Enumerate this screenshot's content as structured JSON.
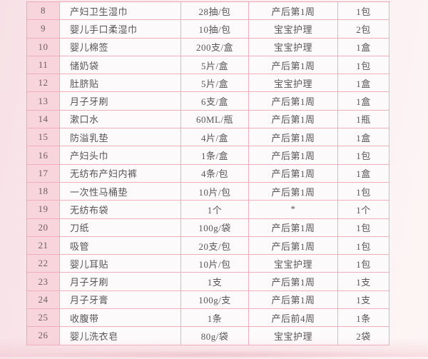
{
  "table": {
    "rows": [
      {
        "no": "8",
        "item": "产妇卫生湿巾",
        "spec": "28抽/包",
        "stage": "产后第1周",
        "qty": "1包"
      },
      {
        "no": "9",
        "item": "婴儿手口柔湿巾",
        "spec": "10抽/包",
        "stage": "宝宝护理",
        "qty": "2包"
      },
      {
        "no": "10",
        "item": "婴儿棉签",
        "spec": "200支/盒",
        "stage": "宝宝护理",
        "qty": "1盒"
      },
      {
        "no": "11",
        "item": "储奶袋",
        "spec": "5片/盒",
        "stage": "产后第1周",
        "qty": "1包"
      },
      {
        "no": "12",
        "item": "肚脐贴",
        "spec": "5片/盒",
        "stage": "宝宝护理",
        "qty": "1盒"
      },
      {
        "no": "13",
        "item": "月子牙刷",
        "spec": "6支/盒",
        "stage": "产后第1周",
        "qty": "1盒"
      },
      {
        "no": "14",
        "item": "漱口水",
        "spec": "60ML/瓶",
        "stage": "产后第1周",
        "qty": "1瓶"
      },
      {
        "no": "15",
        "item": "防溢乳垫",
        "spec": "4片/盒",
        "stage": "产后第1周",
        "qty": "1盒"
      },
      {
        "no": "16",
        "item": "产妇头巾",
        "spec": "1条/盒",
        "stage": "产后第1周",
        "qty": "1包"
      },
      {
        "no": "17",
        "item": "无纺布产妇内裤",
        "spec": "4条/包",
        "stage": "产后第1周",
        "qty": "1盒"
      },
      {
        "no": "18",
        "item": "一次性马桶垫",
        "spec": "10片/包",
        "stage": "产后第1周",
        "qty": "1包"
      },
      {
        "no": "19",
        "item": "无纺布袋",
        "spec": "1个",
        "stage": "*",
        "qty": "1个"
      },
      {
        "no": "20",
        "item": "刀纸",
        "spec": "100g/袋",
        "stage": "产后第1周",
        "qty": "1包"
      },
      {
        "no": "21",
        "item": "吸管",
        "spec": "20支/包",
        "stage": "产后第1周",
        "qty": "1包"
      },
      {
        "no": "22",
        "item": "婴儿耳贴",
        "spec": "10片/包",
        "stage": "宝宝护理",
        "qty": "1包"
      },
      {
        "no": "23",
        "item": "月子牙刷",
        "spec": "1支",
        "stage": "产后第1周",
        "qty": "1支"
      },
      {
        "no": "24",
        "item": "月子牙膏",
        "spec": "100g/支",
        "stage": "产后第1周",
        "qty": "1支"
      },
      {
        "no": "25",
        "item": "收腹带",
        "spec": "1条",
        "stage": "产后前4周",
        "qty": "1条"
      },
      {
        "no": "26",
        "item": "婴儿洗衣皂",
        "spec": "80g/袋",
        "stage": "宝宝护理",
        "qty": "2袋"
      }
    ]
  },
  "colors": {
    "page_background_left": "#f7e1e6",
    "page_background_right": "#fdf5f5",
    "cell_background": "#fdfafb",
    "number_column_background": "#f8d4dd",
    "border": "#f2adbd",
    "text": "#565656"
  }
}
